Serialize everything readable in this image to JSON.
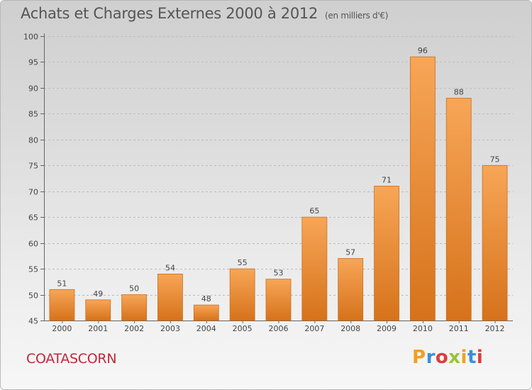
{
  "header": {
    "title": "Achats et Charges Externes 2000 à 2012",
    "subtitle": "(en milliers d'€)"
  },
  "footer": {
    "commune": "COATASCORN",
    "logo_text": "Proxiti",
    "logo_colors": [
      "#f0a020",
      "#3a8fd8",
      "#e03c3c",
      "#9ac23c",
      "#f0a020",
      "#3a8fd8",
      "#e03c3c"
    ]
  },
  "colors": {
    "bar_light": "#f7a657",
    "bar_dark": "#d6721b",
    "bar_stroke": "#c9701e",
    "axis": "#666666",
    "grid": "#bdbdbd"
  },
  "chart_data": {
    "type": "bar",
    "title": "Achats et Charges Externes 2000 à 2012",
    "subtitle": "(en milliers d'€)",
    "categories": [
      "2000",
      "2001",
      "2002",
      "2003",
      "2004",
      "2005",
      "2006",
      "2007",
      "2008",
      "2009",
      "2010",
      "2011",
      "2012"
    ],
    "values": [
      51,
      49,
      50,
      54,
      48,
      55,
      53,
      65,
      57,
      71,
      96,
      88,
      75
    ],
    "ylim": [
      45,
      100
    ],
    "yticks": [
      45,
      50,
      55,
      60,
      65,
      70,
      75,
      80,
      85,
      90,
      95,
      100
    ],
    "grid": true,
    "data_labels": true
  }
}
